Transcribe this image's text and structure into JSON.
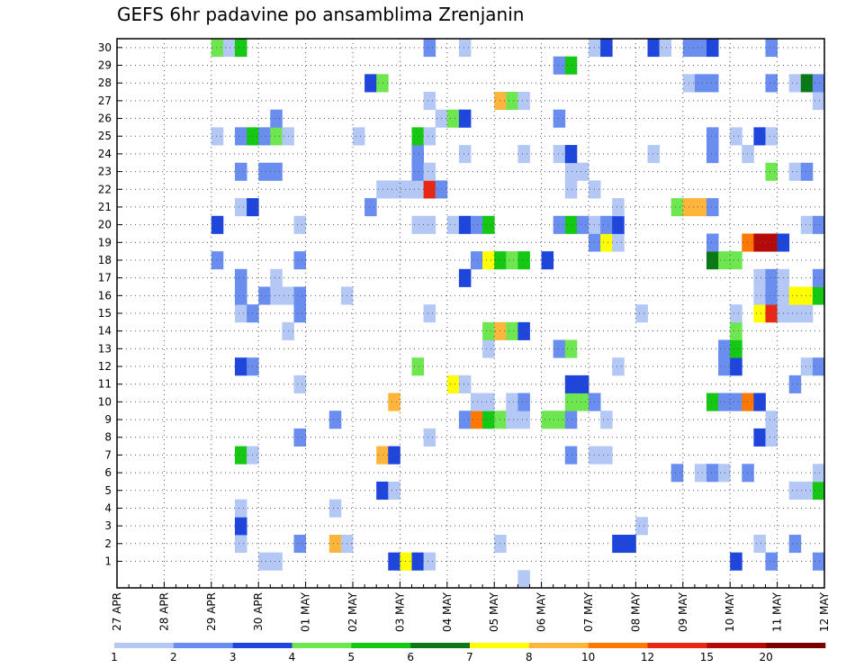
{
  "chart_data": {
    "type": "heatmap",
    "title": "GEFS 6hr padavine po ansamblima Zrenjanin",
    "xlabel": "",
    "ylabel": "",
    "x_tick_labels": [
      "27 APR",
      "28 APR",
      "29 APR",
      "30 APR",
      "01 MAY",
      "02 MAY",
      "03 MAY",
      "04 MAY",
      "05 MAY",
      "06 MAY",
      "07 MAY",
      "08 MAY",
      "09 MAY",
      "10 MAY",
      "11 MAY",
      "12 MAY"
    ],
    "x_unit": "6-hour step",
    "steps_per_day": 4,
    "n_steps": 60,
    "y_tick_labels": [
      "1",
      "2",
      "3",
      "4",
      "5",
      "6",
      "7",
      "8",
      "9",
      "10",
      "11",
      "12",
      "13",
      "14",
      "15",
      "16",
      "17",
      "18",
      "19",
      "20",
      "21",
      "22",
      "23",
      "24",
      "25",
      "26",
      "27",
      "28",
      "29",
      "30"
    ],
    "ylim": [
      1,
      30
    ],
    "grid": "dotted",
    "legend": {
      "position": "bottom",
      "thresholds": [
        "1",
        "2",
        "3",
        "4",
        "5",
        "6",
        "7",
        "8",
        "10",
        "12",
        "15",
        "20"
      ],
      "colors": [
        "#b4c8f5",
        "#6a8ef0",
        "#1e46dc",
        "#6ee650",
        "#14c814",
        "#0a7814",
        "#ffff00",
        "#ffb43c",
        "#ff7800",
        "#e62814",
        "#b40a0a",
        "#780000"
      ]
    },
    "cells": [
      [
        1,
        12,
        1
      ],
      [
        1,
        13,
        1
      ],
      [
        1,
        23,
        3
      ],
      [
        1,
        24,
        7
      ],
      [
        1,
        25,
        3
      ],
      [
        1,
        26,
        1
      ],
      [
        1,
        52,
        3
      ],
      [
        1,
        55,
        2
      ],
      [
        1,
        59,
        2
      ],
      [
        2,
        10,
        1
      ],
      [
        2,
        15,
        2
      ],
      [
        2,
        18,
        8
      ],
      [
        2,
        19,
        1
      ],
      [
        2,
        32,
        1
      ],
      [
        2,
        42,
        3
      ],
      [
        2,
        43,
        3
      ],
      [
        2,
        54,
        1
      ],
      [
        2,
        57,
        2
      ],
      [
        3,
        10,
        3
      ],
      [
        3,
        44,
        1
      ],
      [
        4,
        10,
        1
      ],
      [
        4,
        18,
        1
      ],
      [
        5,
        22,
        3
      ],
      [
        5,
        23,
        1
      ],
      [
        5,
        57,
        1
      ],
      [
        5,
        58,
        1
      ],
      [
        5,
        59,
        5
      ],
      [
        6,
        47,
        2
      ],
      [
        6,
        49,
        1
      ],
      [
        6,
        50,
        2
      ],
      [
        6,
        51,
        1
      ],
      [
        6,
        53,
        2
      ],
      [
        6,
        59,
        1
      ],
      [
        7,
        10,
        5
      ],
      [
        7,
        11,
        1
      ],
      [
        7,
        22,
        8
      ],
      [
        7,
        23,
        3
      ],
      [
        7,
        38,
        2
      ],
      [
        7,
        40,
        1
      ],
      [
        7,
        41,
        1
      ],
      [
        8,
        15,
        2
      ],
      [
        8,
        26,
        1
      ],
      [
        8,
        54,
        3
      ],
      [
        8,
        55,
        1
      ],
      [
        9,
        18,
        2
      ],
      [
        9,
        29,
        2
      ],
      [
        9,
        30,
        9
      ],
      [
        9,
        31,
        5
      ],
      [
        9,
        32,
        4
      ],
      [
        9,
        33,
        1
      ],
      [
        9,
        34,
        1
      ],
      [
        9,
        36,
        4
      ],
      [
        9,
        37,
        4
      ],
      [
        9,
        38,
        2
      ],
      [
        9,
        41,
        1
      ],
      [
        9,
        55,
        1
      ],
      [
        10,
        23,
        8
      ],
      [
        10,
        30,
        1
      ],
      [
        10,
        31,
        1
      ],
      [
        10,
        33,
        1
      ],
      [
        10,
        34,
        2
      ],
      [
        10,
        38,
        4
      ],
      [
        10,
        39,
        4
      ],
      [
        10,
        40,
        2
      ],
      [
        10,
        50,
        5
      ],
      [
        10,
        51,
        2
      ],
      [
        10,
        52,
        2
      ],
      [
        10,
        53,
        9
      ],
      [
        10,
        54,
        3
      ],
      [
        11,
        15,
        1
      ],
      [
        11,
        28,
        7
      ],
      [
        11,
        29,
        1
      ],
      [
        11,
        38,
        3
      ],
      [
        11,
        39,
        3
      ],
      [
        11,
        57,
        2
      ],
      [
        12,
        10,
        3
      ],
      [
        12,
        11,
        2
      ],
      [
        12,
        25,
        4
      ],
      [
        12,
        42,
        1
      ],
      [
        12,
        51,
        2
      ],
      [
        12,
        52,
        3
      ],
      [
        12,
        58,
        1
      ],
      [
        12,
        59,
        2
      ],
      [
        13,
        31,
        1
      ],
      [
        13,
        37,
        2
      ],
      [
        13,
        38,
        4
      ],
      [
        13,
        51,
        2
      ],
      [
        13,
        52,
        5
      ],
      [
        14,
        14,
        1
      ],
      [
        14,
        31,
        4
      ],
      [
        14,
        32,
        8
      ],
      [
        14,
        33,
        4
      ],
      [
        14,
        34,
        3
      ],
      [
        14,
        52,
        4
      ],
      [
        15,
        10,
        1
      ],
      [
        15,
        11,
        2
      ],
      [
        15,
        15,
        2
      ],
      [
        15,
        26,
        1
      ],
      [
        15,
        44,
        1
      ],
      [
        15,
        52,
        1
      ],
      [
        15,
        54,
        7
      ],
      [
        15,
        55,
        10
      ],
      [
        15,
        56,
        1
      ],
      [
        15,
        57,
        1
      ],
      [
        15,
        58,
        1
      ],
      [
        16,
        10,
        2
      ],
      [
        16,
        12,
        2
      ],
      [
        16,
        13,
        1
      ],
      [
        16,
        14,
        1
      ],
      [
        16,
        15,
        2
      ],
      [
        16,
        19,
        1
      ],
      [
        16,
        54,
        1
      ],
      [
        16,
        55,
        2
      ],
      [
        16,
        56,
        1
      ],
      [
        16,
        57,
        7
      ],
      [
        16,
        58,
        7
      ],
      [
        16,
        59,
        5
      ],
      [
        17,
        10,
        2
      ],
      [
        17,
        13,
        1
      ],
      [
        17,
        29,
        3
      ],
      [
        17,
        54,
        1
      ],
      [
        17,
        55,
        2
      ],
      [
        17,
        56,
        1
      ],
      [
        17,
        59,
        2
      ],
      [
        18,
        8,
        2
      ],
      [
        18,
        15,
        2
      ],
      [
        18,
        30,
        2
      ],
      [
        18,
        31,
        7
      ],
      [
        18,
        32,
        5
      ],
      [
        18,
        33,
        4
      ],
      [
        18,
        34,
        5
      ],
      [
        18,
        36,
        3
      ],
      [
        18,
        50,
        6
      ],
      [
        18,
        51,
        4
      ],
      [
        18,
        52,
        4
      ],
      [
        19,
        40,
        2
      ],
      [
        19,
        41,
        7
      ],
      [
        19,
        42,
        1
      ],
      [
        19,
        50,
        2
      ],
      [
        19,
        53,
        9
      ],
      [
        19,
        54,
        11
      ],
      [
        19,
        55,
        11
      ],
      [
        19,
        56,
        3
      ],
      [
        20,
        8,
        3
      ],
      [
        20,
        15,
        1
      ],
      [
        20,
        25,
        1
      ],
      [
        20,
        26,
        1
      ],
      [
        20,
        28,
        1
      ],
      [
        20,
        29,
        3
      ],
      [
        20,
        30,
        2
      ],
      [
        20,
        31,
        5
      ],
      [
        20,
        37,
        2
      ],
      [
        20,
        38,
        5
      ],
      [
        20,
        39,
        2
      ],
      [
        20,
        40,
        1
      ],
      [
        20,
        41,
        2
      ],
      [
        20,
        42,
        3
      ],
      [
        20,
        58,
        1
      ],
      [
        20,
        59,
        2
      ],
      [
        21,
        10,
        1
      ],
      [
        21,
        11,
        3
      ],
      [
        21,
        21,
        2
      ],
      [
        21,
        42,
        1
      ],
      [
        21,
        47,
        4
      ],
      [
        21,
        48,
        8
      ],
      [
        21,
        49,
        8
      ],
      [
        21,
        50,
        2
      ],
      [
        22,
        22,
        1
      ],
      [
        22,
        23,
        1
      ],
      [
        22,
        24,
        1
      ],
      [
        22,
        25,
        1
      ],
      [
        22,
        26,
        10
      ],
      [
        22,
        27,
        2
      ],
      [
        22,
        38,
        1
      ],
      [
        22,
        40,
        1
      ],
      [
        23,
        10,
        2
      ],
      [
        23,
        12,
        2
      ],
      [
        23,
        13,
        2
      ],
      [
        23,
        25,
        2
      ],
      [
        23,
        26,
        1
      ],
      [
        23,
        38,
        1
      ],
      [
        23,
        39,
        1
      ],
      [
        23,
        55,
        4
      ],
      [
        23,
        57,
        1
      ],
      [
        23,
        58,
        2
      ],
      [
        24,
        25,
        2
      ],
      [
        24,
        29,
        1
      ],
      [
        24,
        34,
        1
      ],
      [
        24,
        37,
        1
      ],
      [
        24,
        38,
        3
      ],
      [
        24,
        45,
        1
      ],
      [
        24,
        50,
        2
      ],
      [
        24,
        53,
        1
      ],
      [
        25,
        8,
        1
      ],
      [
        25,
        10,
        2
      ],
      [
        25,
        11,
        5
      ],
      [
        25,
        12,
        2
      ],
      [
        25,
        13,
        4
      ],
      [
        25,
        14,
        1
      ],
      [
        25,
        20,
        1
      ],
      [
        25,
        25,
        5
      ],
      [
        25,
        26,
        1
      ],
      [
        25,
        50,
        2
      ],
      [
        25,
        52,
        1
      ],
      [
        25,
        54,
        3
      ],
      [
        25,
        55,
        1
      ],
      [
        26,
        13,
        2
      ],
      [
        26,
        27,
        1
      ],
      [
        26,
        28,
        4
      ],
      [
        26,
        29,
        3
      ],
      [
        26,
        37,
        2
      ],
      [
        27,
        26,
        1
      ],
      [
        27,
        32,
        8
      ],
      [
        27,
        33,
        4
      ],
      [
        27,
        34,
        1
      ],
      [
        27,
        59,
        1
      ],
      [
        28,
        21,
        3
      ],
      [
        28,
        22,
        4
      ],
      [
        28,
        48,
        1
      ],
      [
        28,
        49,
        2
      ],
      [
        28,
        50,
        2
      ],
      [
        28,
        55,
        2
      ],
      [
        28,
        57,
        1
      ],
      [
        28,
        58,
        6
      ],
      [
        28,
        59,
        2
      ],
      [
        29,
        37,
        2
      ],
      [
        29,
        38,
        5
      ],
      [
        30,
        8,
        4
      ],
      [
        30,
        9,
        1
      ],
      [
        30,
        10,
        5
      ],
      [
        30,
        26,
        2
      ],
      [
        30,
        29,
        1
      ],
      [
        30,
        40,
        1
      ],
      [
        30,
        41,
        3
      ],
      [
        30,
        45,
        3
      ],
      [
        30,
        46,
        1
      ],
      [
        30,
        48,
        2
      ],
      [
        30,
        49,
        2
      ],
      [
        30,
        50,
        3
      ],
      [
        30,
        55,
        2
      ]
    ],
    "extra_marks": [
      {
        "row": 0,
        "step": 34,
        "level": 1
      }
    ]
  }
}
